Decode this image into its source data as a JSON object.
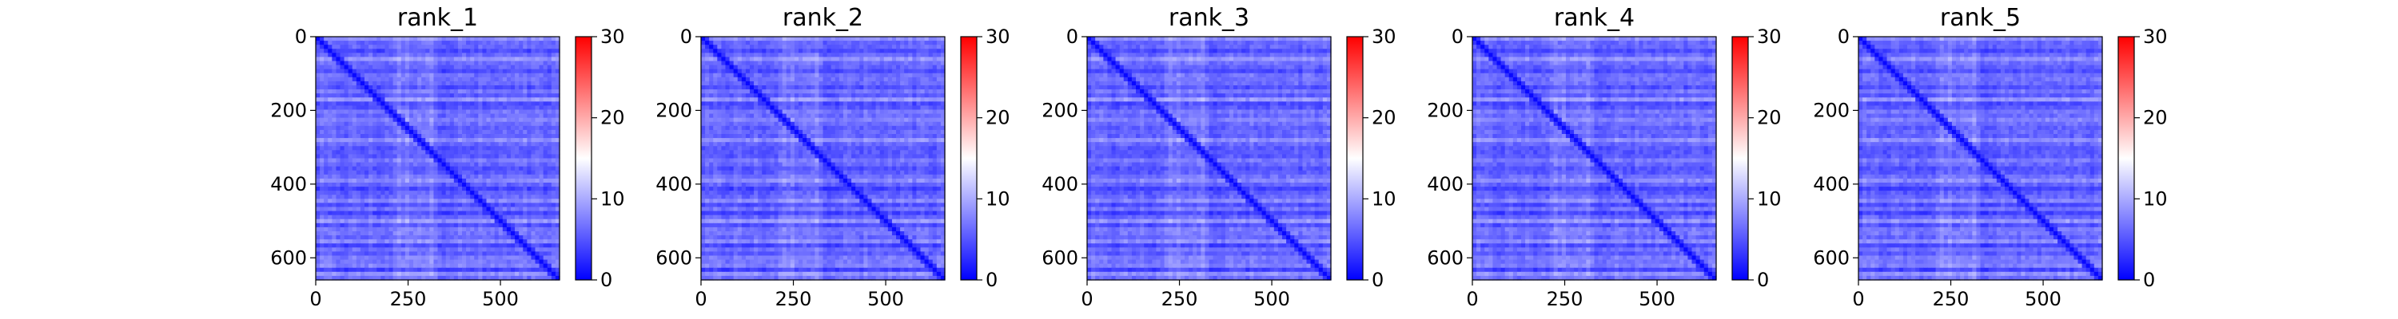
{
  "chart_data": [
    {
      "type": "heatmap",
      "title": "rank_1",
      "xlim": [
        0,
        660
      ],
      "ylim": [
        660,
        0
      ],
      "xticks": [
        0,
        250,
        500
      ],
      "yticks": [
        0,
        200,
        400,
        600
      ],
      "colorbar": {
        "min": 0,
        "max": 30,
        "ticks": [
          0,
          10,
          20,
          30
        ],
        "colors": [
          "#0000ff",
          "#ffffff",
          "#ff0000"
        ]
      },
      "value_range": [
        0,
        13
      ]
    },
    {
      "type": "heatmap",
      "title": "rank_2",
      "xlim": [
        0,
        660
      ],
      "ylim": [
        660,
        0
      ],
      "xticks": [
        0,
        250,
        500
      ],
      "yticks": [
        0,
        200,
        400,
        600
      ],
      "colorbar": {
        "min": 0,
        "max": 30,
        "ticks": [
          0,
          10,
          20,
          30
        ],
        "colors": [
          "#0000ff",
          "#ffffff",
          "#ff0000"
        ]
      },
      "value_range": [
        0,
        13
      ]
    },
    {
      "type": "heatmap",
      "title": "rank_3",
      "xlim": [
        0,
        660
      ],
      "ylim": [
        660,
        0
      ],
      "xticks": [
        0,
        250,
        500
      ],
      "yticks": [
        0,
        200,
        400,
        600
      ],
      "colorbar": {
        "min": 0,
        "max": 30,
        "ticks": [
          0,
          10,
          20,
          30
        ],
        "colors": [
          "#0000ff",
          "#ffffff",
          "#ff0000"
        ]
      },
      "value_range": [
        0,
        13
      ]
    },
    {
      "type": "heatmap",
      "title": "rank_4",
      "xlim": [
        0,
        660
      ],
      "ylim": [
        660,
        0
      ],
      "xticks": [
        0,
        250,
        500
      ],
      "yticks": [
        0,
        200,
        400,
        600
      ],
      "colorbar": {
        "min": 0,
        "max": 30,
        "ticks": [
          0,
          10,
          20,
          30
        ],
        "colors": [
          "#0000ff",
          "#ffffff",
          "#ff0000"
        ]
      },
      "value_range": [
        0,
        13
      ]
    },
    {
      "type": "heatmap",
      "title": "rank_5",
      "xlim": [
        0,
        660
      ],
      "ylim": [
        660,
        0
      ],
      "xticks": [
        0,
        250,
        500
      ],
      "yticks": [
        0,
        200,
        400,
        600
      ],
      "colorbar": {
        "min": 0,
        "max": 30,
        "ticks": [
          0,
          10,
          20,
          30
        ],
        "colors": [
          "#0000ff",
          "#ffffff",
          "#ff0000"
        ]
      },
      "value_range": [
        0,
        13
      ]
    }
  ]
}
